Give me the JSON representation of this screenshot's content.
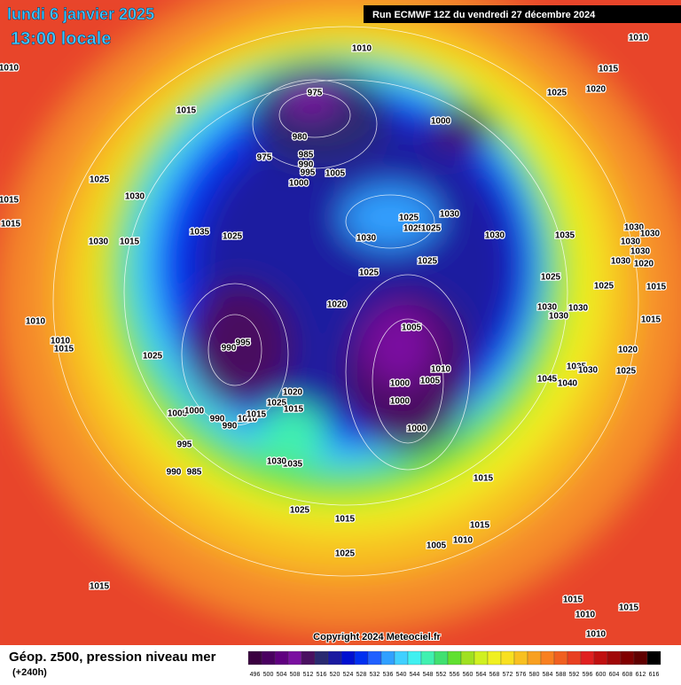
{
  "header": {
    "date": "lundi 6 janvier 2025",
    "time": "13:00 locale",
    "run": "Run ECMWF 12Z du vendredi 27 décembre 2024"
  },
  "legend": {
    "title": "Géop. z500, pression niveau mer",
    "lead": "(+240h)",
    "scale": [
      496,
      500,
      504,
      508,
      512,
      516,
      520,
      524,
      528,
      532,
      536,
      540,
      544,
      548,
      552,
      556,
      560,
      564,
      568,
      572,
      576,
      580,
      584,
      588,
      592,
      596,
      600,
      604,
      608,
      612,
      616
    ],
    "colors": [
      "#3a0040",
      "#4a0060",
      "#600080",
      "#7a10a0",
      "#4a1060",
      "#2a2a70",
      "#1a1aa0",
      "#0010d0",
      "#0030f0",
      "#2060ff",
      "#30a0ff",
      "#40d0ff",
      "#40f0f0",
      "#40f0b0",
      "#40e070",
      "#60e030",
      "#a0e020",
      "#d0f020",
      "#f0f020",
      "#f8e020",
      "#f8c020",
      "#f8a020",
      "#f88020",
      "#f06020",
      "#e84020",
      "#e02020",
      "#c01010",
      "#a00808",
      "#800000",
      "#600000",
      "#000000"
    ]
  },
  "copyright": "Copyright 2024 Meteociel.fr",
  "isobar_labels": [
    1010,
    1010,
    1015,
    1010,
    1015,
    975,
    1000,
    1025,
    1020,
    980,
    975,
    985,
    990,
    995,
    1005,
    1000,
    1025,
    1030,
    1015,
    1015,
    1035,
    1025,
    1030,
    1015,
    1030,
    1025,
    1025,
    1025,
    1030,
    1030,
    1035,
    1030,
    1030,
    1030,
    1030,
    1030,
    1020,
    1025,
    1025,
    1025,
    1025,
    1015,
    1020,
    1030,
    1030,
    1030,
    1015,
    1010,
    1010,
    1015,
    995,
    990,
    1005,
    1025,
    1020,
    1035,
    1030,
    1025,
    1010,
    1005,
    1045,
    1040,
    1000,
    1020,
    1025,
    1015,
    1000,
    1005,
    1000,
    990,
    990,
    1010,
    1015,
    1000,
    995,
    1035,
    1030,
    990,
    985,
    1015,
    1025,
    1015,
    1015,
    1005,
    1010,
    1025,
    1015,
    1015,
    1010,
    1015,
    1010
  ]
}
